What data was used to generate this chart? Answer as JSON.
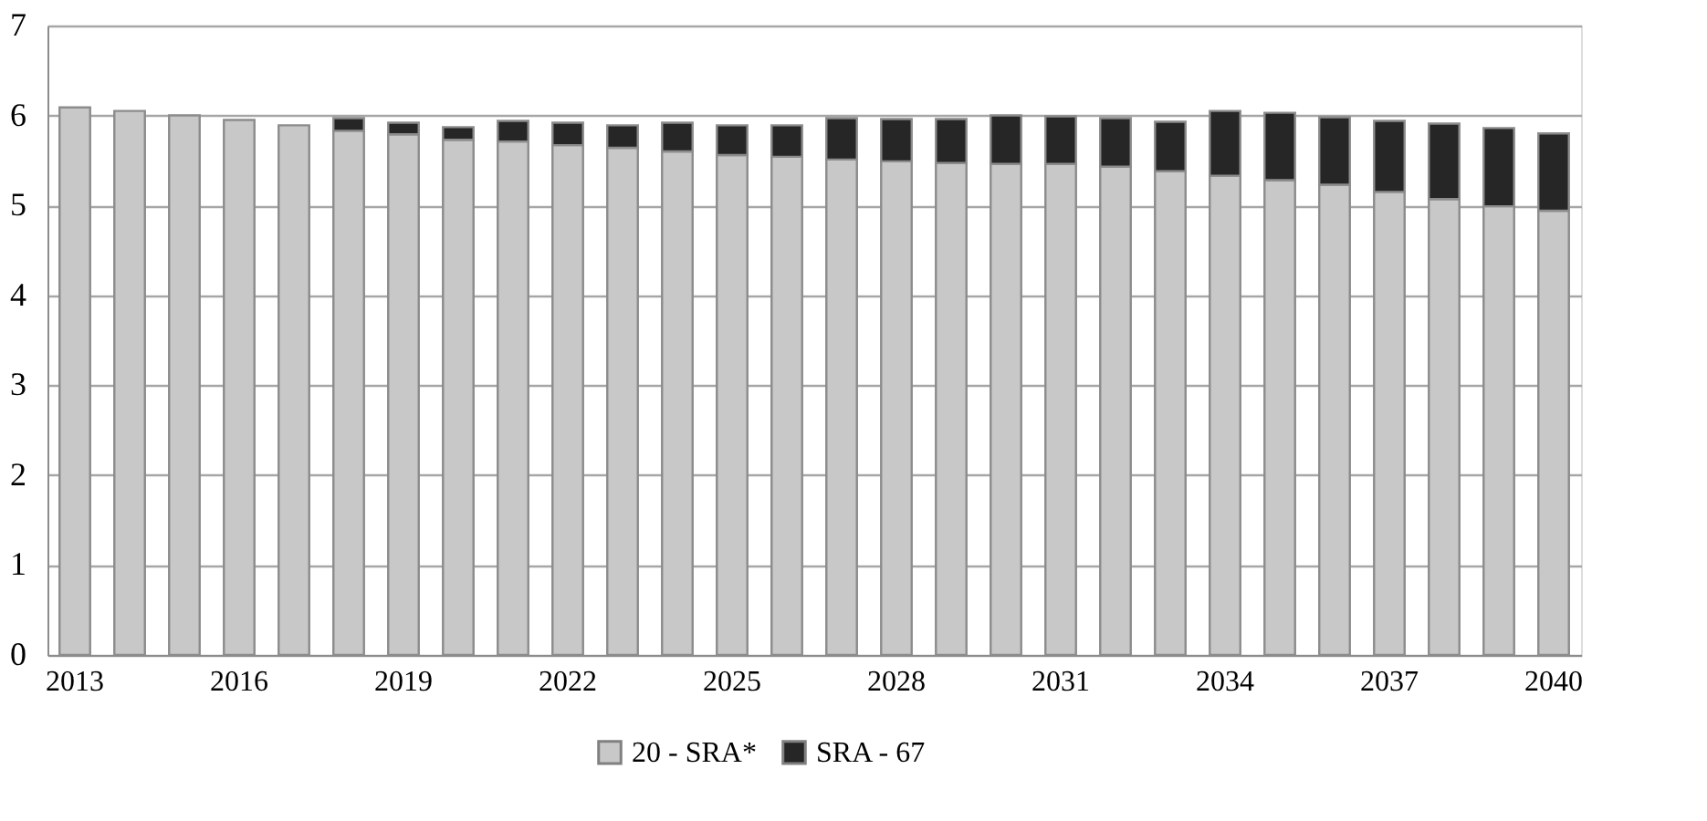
{
  "chart_data": {
    "type": "bar",
    "stacked": true,
    "categories": [
      "2013",
      null,
      null,
      "2016",
      null,
      null,
      "2019",
      null,
      null,
      "2022",
      null,
      null,
      "2025",
      null,
      null,
      "2028",
      null,
      null,
      "2031",
      null,
      null,
      "2034",
      null,
      null,
      "2037",
      null,
      null,
      "2040"
    ],
    "series": [
      {
        "name": "20 - SRA*",
        "color": "#c8c8c8",
        "values": [
          6.09,
          6.05,
          6.0,
          5.95,
          5.89,
          5.83,
          5.79,
          5.73,
          5.71,
          5.67,
          5.64,
          5.6,
          5.56,
          5.54,
          5.51,
          5.49,
          5.47,
          5.46,
          5.46,
          5.43,
          5.38,
          5.33,
          5.28,
          5.23,
          5.15,
          5.07,
          4.99,
          4.94
        ]
      },
      {
        "name": "SRA - 67",
        "color": "#262626",
        "values": [
          null,
          null,
          null,
          null,
          null,
          0.14,
          0.13,
          0.14,
          0.23,
          0.25,
          0.25,
          0.32,
          0.33,
          0.35,
          0.46,
          0.47,
          0.49,
          0.54,
          0.53,
          0.54,
          0.55,
          0.72,
          0.75,
          0.75,
          0.79,
          0.84,
          0.87,
          0.86
        ]
      }
    ],
    "ylim": [
      0,
      7
    ],
    "yticks": [
      0,
      1,
      2,
      3,
      4,
      5,
      6,
      7
    ],
    "grid": "y",
    "legend": "bottom"
  }
}
